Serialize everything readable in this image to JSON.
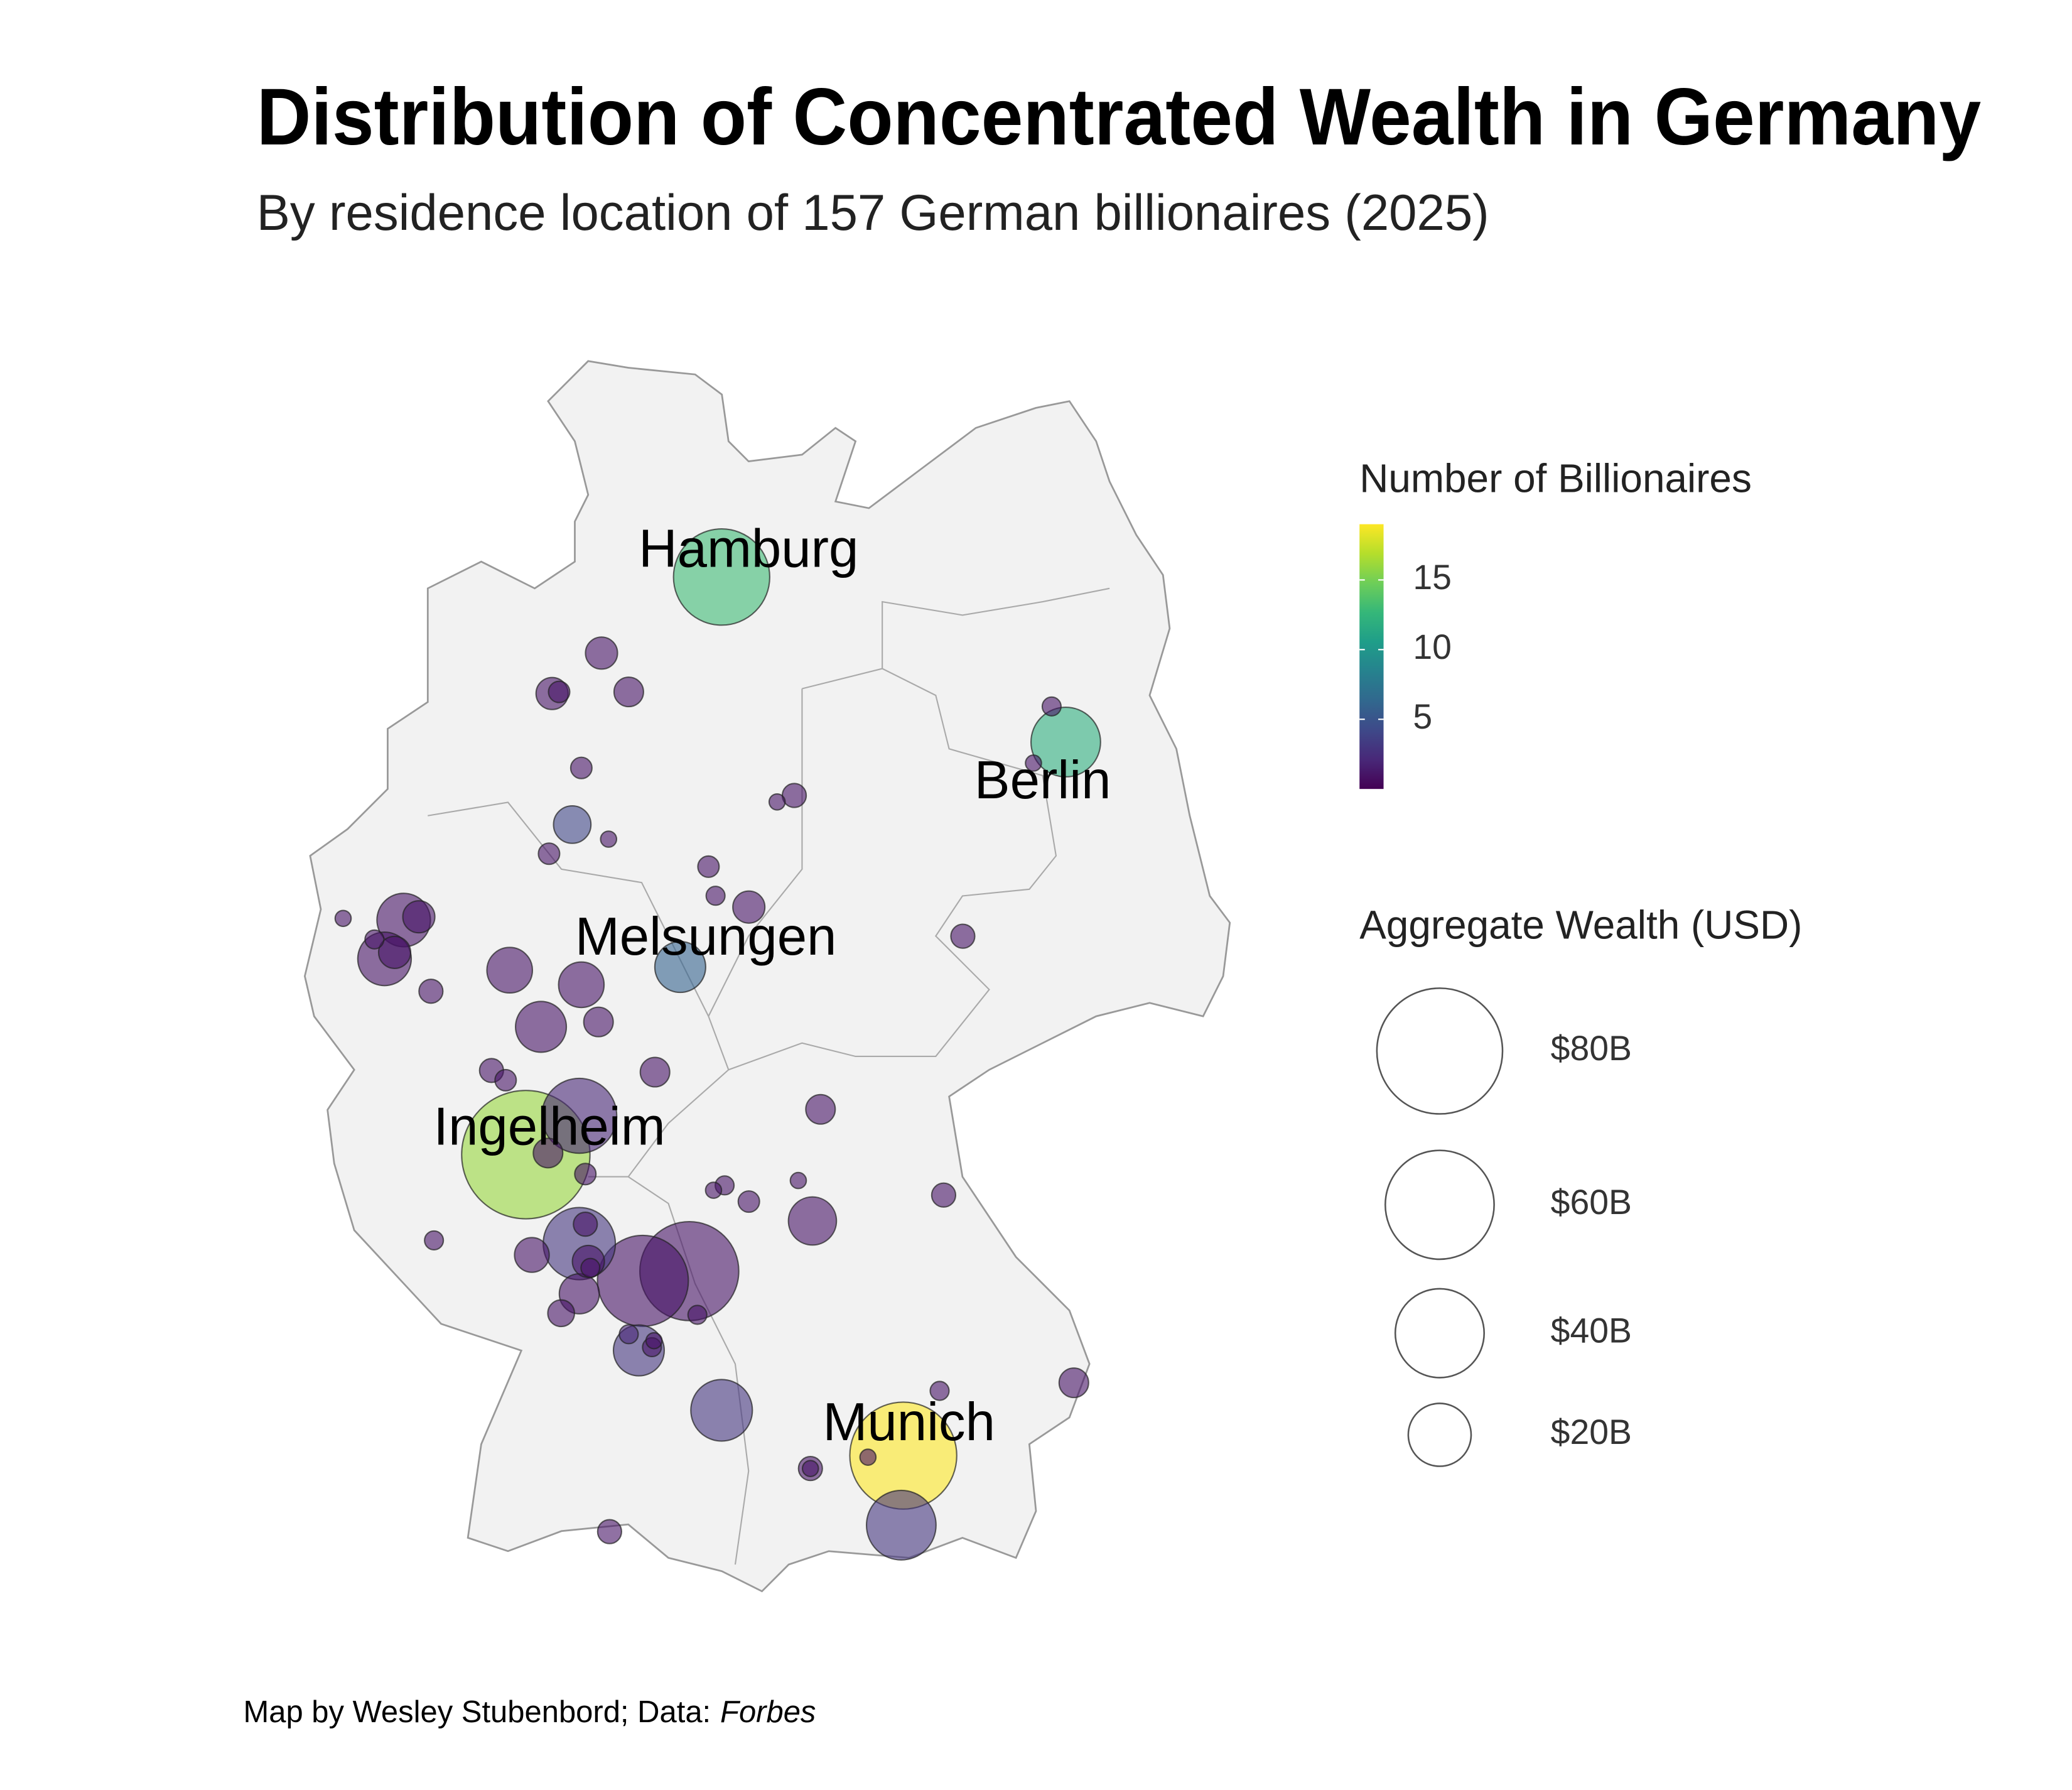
{
  "chart_data": {
    "type": "bubble-map",
    "title": "Distribution of Concentrated Wealth in Germany",
    "subtitle": "By residence location of 157 German billionaires (2025)",
    "caption": "Map by Wesley Stubenbord; Data:",
    "source": "Forbes",
    "annotations": [
      "Hamburg",
      "Berlin",
      "Melsungen",
      "Ingelheim",
      "Munich"
    ],
    "color_legend_title": "Number of Billionaires",
    "colormap": "viridis",
    "colorlim": [
      0,
      19
    ],
    "colorticks": [
      5,
      10,
      15
    ],
    "size_legend_title": "Aggregate Wealth (USD)",
    "size_ticks": [
      {
        "value": 80,
        "label": "$80B"
      },
      {
        "value": 60,
        "label": "$60B"
      },
      {
        "value": 40,
        "label": "$40B"
      },
      {
        "value": 20,
        "label": "$20B"
      }
    ],
    "points": {
      "lon": [
        10.0,
        13.41,
        13.27,
        13.09,
        8.81,
        8.32,
        8.39,
        9.08,
        8.61,
        10.72,
        10.55,
        8.52,
        8.88,
        8.29,
        9.87,
        9.94,
        10.27,
        12.39,
        6.85,
        7.0,
        6.25,
        6.66,
        6.76,
        6.56,
        7.12,
        7.9,
        8.61,
        8.21,
        8.78,
        9.59,
        7.72,
        7.86,
        9.34,
        8.59,
        10.98,
        8.06,
        8.28,
        8.65,
        10.03,
        9.92,
        10.27,
        10.76,
        12.2,
        10.9,
        7.15,
        8.59,
        8.65,
        8.12,
        9.22,
        9.68,
        8.68,
        8.7,
        8.59,
        8.41,
        9.76,
        9.18,
        9.08,
        9.33,
        9.31,
        10.0,
        13.49,
        12.16,
        11.8,
        11.45,
        10.88,
        10.88,
        11.78,
        8.89
      ],
      "lat": [
        53.56,
        52.54,
        52.76,
        52.41,
        53.09,
        52.84,
        52.85,
        52.85,
        52.38,
        52.21,
        52.17,
        52.03,
        51.94,
        51.85,
        51.77,
        51.59,
        51.52,
        51.34,
        51.44,
        51.46,
        51.45,
        51.2,
        51.24,
        51.32,
        51.0,
        51.13,
        51.04,
        50.78,
        50.81,
        51.15,
        50.51,
        50.45,
        50.5,
        50.23,
        50.27,
        49.99,
        50.0,
        49.87,
        49.8,
        49.77,
        49.7,
        49.83,
        49.74,
        49.58,
        49.46,
        49.44,
        49.56,
        49.37,
        49.21,
        49.27,
        49.33,
        49.29,
        49.13,
        49.01,
        49.0,
        48.78,
        48.88,
        48.84,
        48.8,
        48.41,
        48.58,
        48.53,
        48.13,
        48.12,
        48.05,
        48.05,
        47.7,
        47.66
      ],
      "count": [
        13,
        12,
        1,
        1,
        1,
        1,
        1,
        1,
        1,
        1,
        1,
        4,
        1,
        1,
        1,
        1,
        1,
        1,
        1,
        1,
        1,
        1,
        1,
        1,
        1,
        1,
        1,
        1,
        1,
        6,
        1,
        1,
        1,
        2,
        1,
        16,
        1,
        1,
        1,
        1,
        1,
        1,
        1,
        1,
        1,
        3,
        1,
        1,
        1,
        1,
        1,
        1,
        1,
        1,
        1,
        3,
        2,
        1,
        1,
        3,
        1,
        1,
        19,
        1,
        1,
        1,
        3,
        1
      ],
      "wealth": [
        46.9,
        24.5,
        1.8,
        1.3,
        5.2,
        5.2,
        2.3,
        4.4,
        2.3,
        2.9,
        1.3,
        7.1,
        1.3,
        2.3,
        2.3,
        1.8,
        5.2,
        2.9,
        14.5,
        5.2,
        1.3,
        14.5,
        5.2,
        1.8,
        2.9,
        10.5,
        10.5,
        13.1,
        4.4,
        13.1,
        2.9,
        2.3,
        4.4,
        28.4,
        4.4,
        83.4,
        4.4,
        2.3,
        1.8,
        1.3,
        2.3,
        1.3,
        2.9,
        11.7,
        1.8,
        26.4,
        2.9,
        6.1,
        41.9,
        49.6,
        5.2,
        1.8,
        8.1,
        3.6,
        1.8,
        13.1,
        1.8,
        1.3,
        1.8,
        19.2,
        4.4,
        1.8,
        57.9,
        1.3,
        2.9,
        1.3,
        24.5,
        2.9
      ]
    }
  }
}
